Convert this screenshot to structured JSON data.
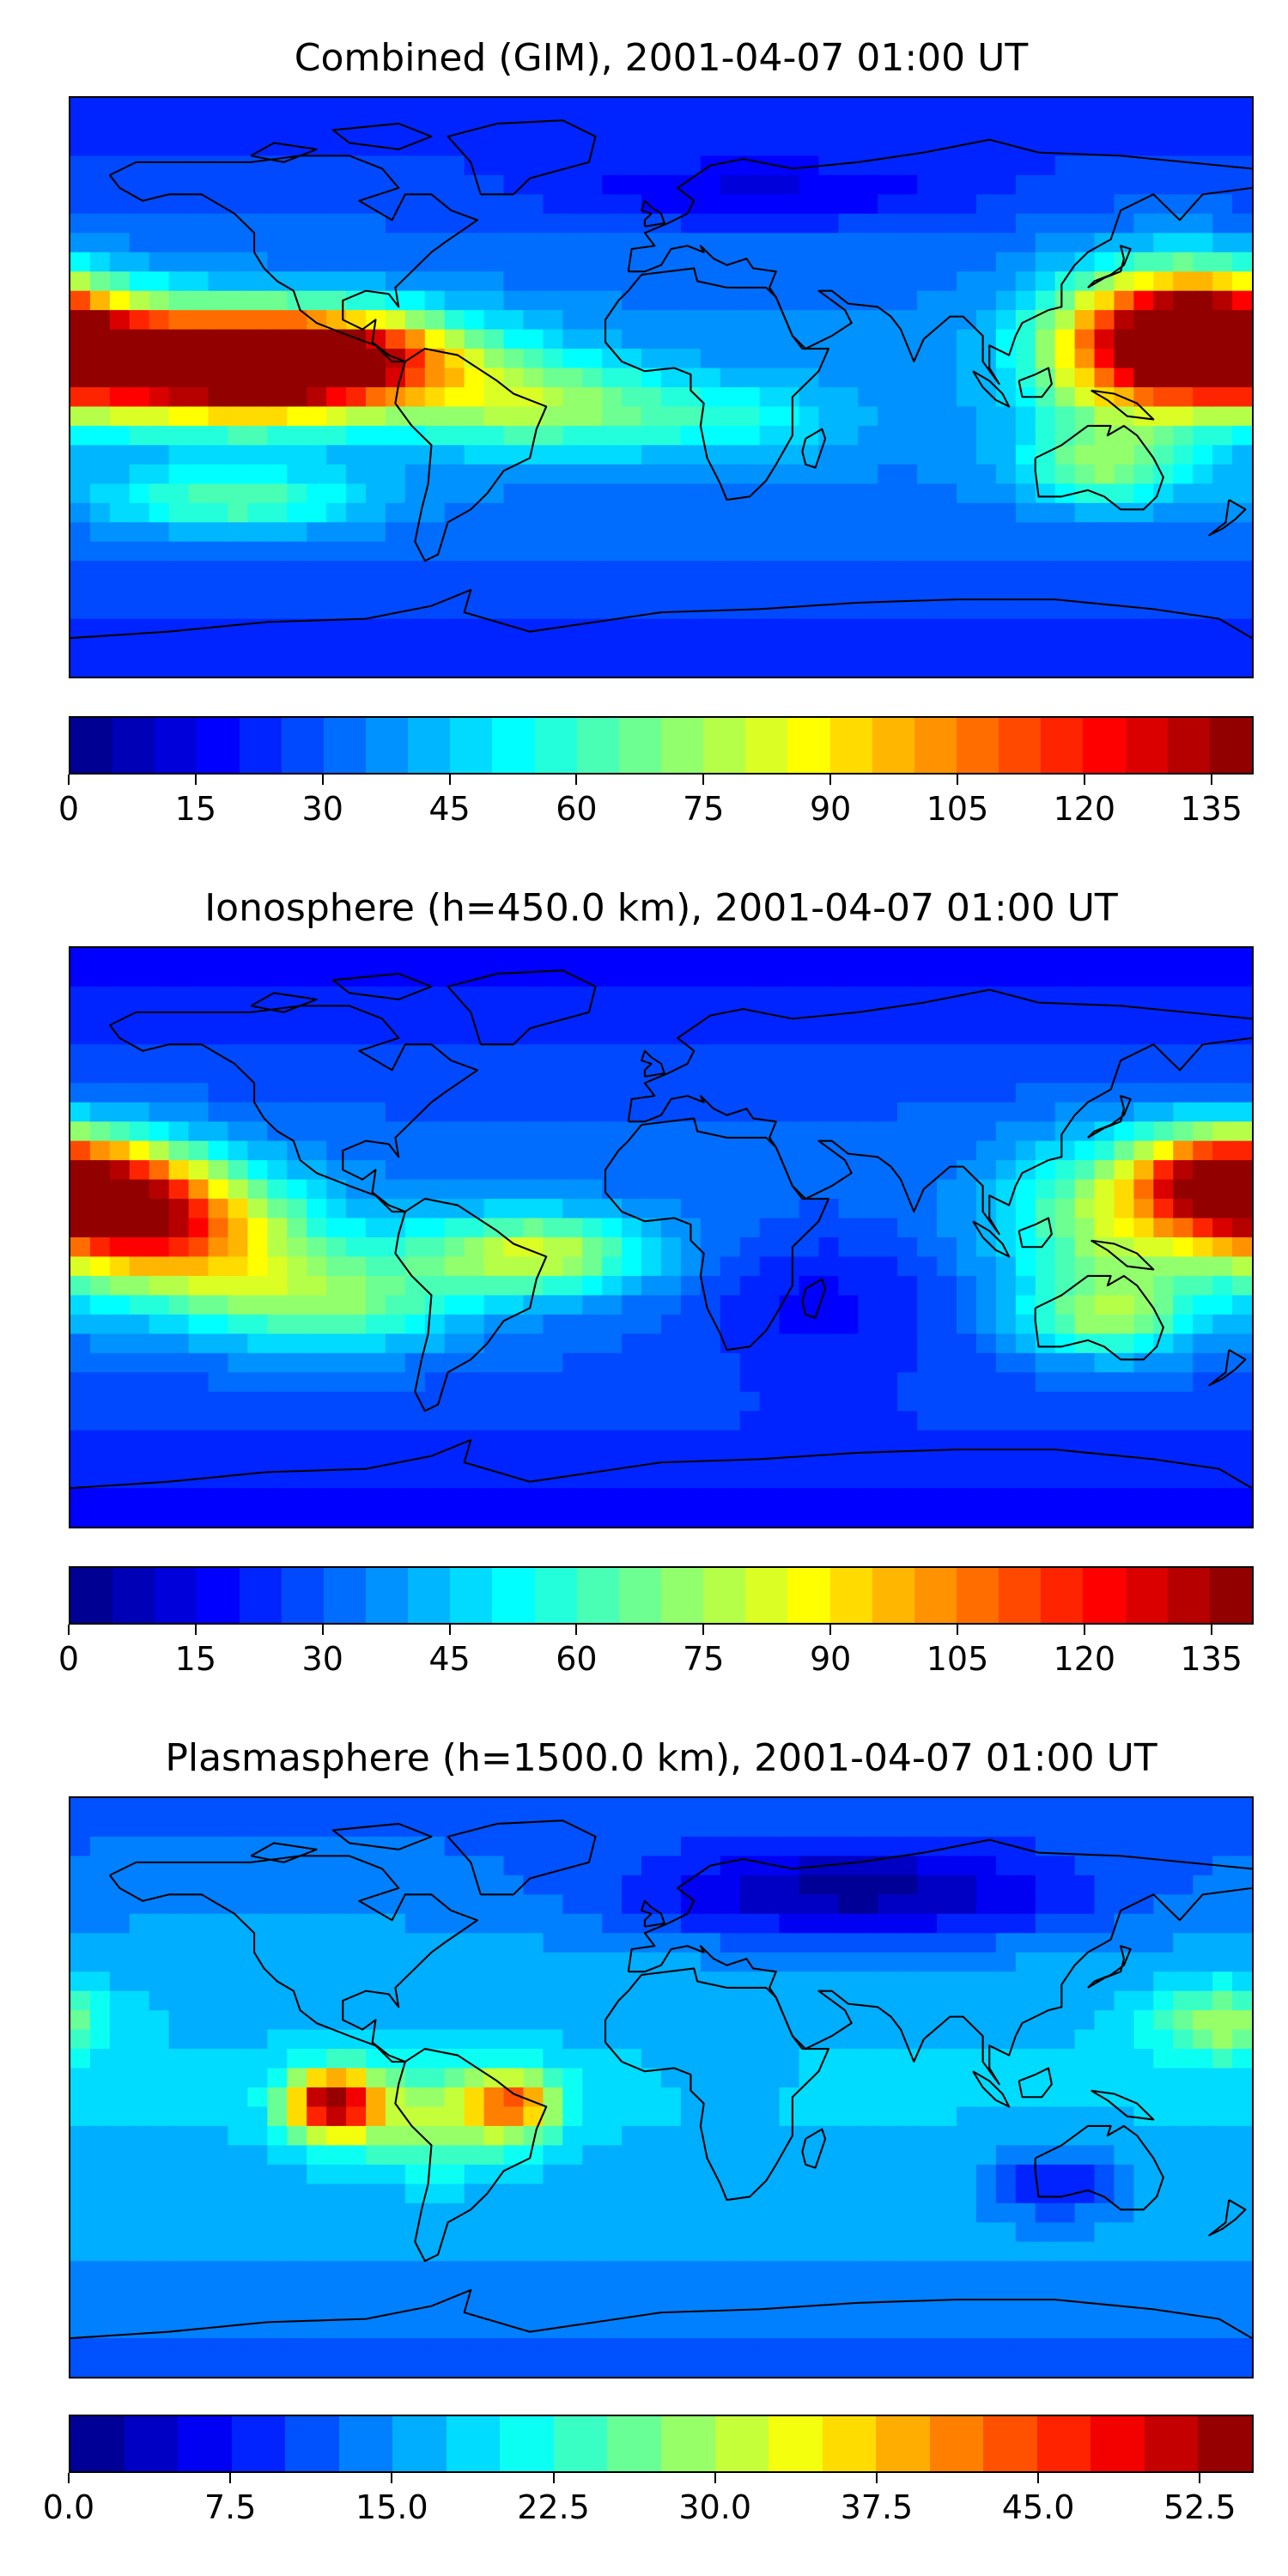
{
  "chart_data": [
    {
      "type": "heatmap",
      "title": "Combined (GIM), 2001-04-07 01:00 UT",
      "colorbar": {
        "min": 0,
        "max": 140,
        "levels": 28,
        "ticks": [
          "0",
          "15",
          "30",
          "45",
          "60",
          "75",
          "90",
          "105",
          "120",
          "135"
        ],
        "tick_values": [
          0,
          15,
          30,
          45,
          60,
          75,
          90,
          105,
          120,
          135
        ]
      },
      "background_level": 0.22,
      "blobs": [
        {
          "lon": -165,
          "lat": 8,
          "level": 0.85,
          "rlon": 45,
          "rlat": 16
        },
        {
          "lon": -120,
          "lat": 5,
          "level": 0.8,
          "rlon": 40,
          "rlat": 16
        },
        {
          "lon": -95,
          "lat": 10,
          "level": 0.7,
          "rlon": 40,
          "rlat": 14
        },
        {
          "lon": 165,
          "lat": 18,
          "level": 0.9,
          "rlon": 30,
          "rlat": 18
        },
        {
          "lon": 140,
          "lat": 10,
          "level": 0.55,
          "rlon": 30,
          "rlat": 25
        },
        {
          "lon": -40,
          "lat": -5,
          "level": 0.5,
          "rlon": 40,
          "rlat": 14
        },
        {
          "lon": 20,
          "lat": -10,
          "level": 0.35,
          "rlon": 35,
          "rlat": 12
        },
        {
          "lon": 135,
          "lat": -25,
          "level": 0.45,
          "rlon": 25,
          "rlat": 12
        },
        {
          "lon": -130,
          "lat": -35,
          "level": 0.45,
          "rlon": 40,
          "rlat": 10
        },
        {
          "lon": 30,
          "lat": 60,
          "level": 0.12,
          "rlon": 60,
          "rlat": 10
        }
      ]
    },
    {
      "type": "heatmap",
      "title": "Ionosphere  (h=450.0 km), 2001-04-07 01:00 UT",
      "colorbar": {
        "min": 0,
        "max": 140,
        "levels": 28,
        "ticks": [
          "0",
          "15",
          "30",
          "45",
          "60",
          "75",
          "90",
          "105",
          "120",
          "135"
        ],
        "tick_values": [
          0,
          15,
          30,
          45,
          60,
          75,
          90,
          105,
          120,
          135
        ]
      },
      "background_level": 0.2,
      "blobs": [
        {
          "lon": -165,
          "lat": 12,
          "level": 0.68,
          "rlon": 30,
          "rlat": 18
        },
        {
          "lon": -145,
          "lat": 0,
          "level": 0.62,
          "rlon": 40,
          "rlat": 20
        },
        {
          "lon": 170,
          "lat": 18,
          "level": 0.78,
          "rlon": 25,
          "rlat": 15
        },
        {
          "lon": 140,
          "lat": 5,
          "level": 0.5,
          "rlon": 35,
          "rlat": 25
        },
        {
          "lon": -40,
          "lat": -5,
          "level": 0.55,
          "rlon": 35,
          "rlat": 12
        },
        {
          "lon": -100,
          "lat": -20,
          "level": 0.45,
          "rlon": 40,
          "rlat": 15
        },
        {
          "lon": 50,
          "lat": -20,
          "level": 0.1,
          "rlon": 40,
          "rlat": 25
        },
        {
          "lon": 135,
          "lat": -25,
          "level": 0.45,
          "rlon": 25,
          "rlat": 12
        }
      ]
    },
    {
      "type": "heatmap",
      "title": "Plasmasphere (h=1500.0 km), 2001-04-07 01:00 UT",
      "colorbar": {
        "min": 0,
        "max": 55,
        "levels": 22,
        "ticks": [
          "0.0",
          "7.5",
          "15.0",
          "22.5",
          "30.0",
          "37.5",
          "45.0",
          "52.5"
        ],
        "tick_values": [
          0,
          7.5,
          15,
          22.5,
          30,
          37.5,
          45,
          52.5
        ]
      },
      "background_level": 0.28,
      "blobs": [
        {
          "lon": -100,
          "lat": -5,
          "level": 0.95,
          "rlon": 14,
          "rlat": 10
        },
        {
          "lon": -45,
          "lat": -5,
          "level": 0.7,
          "rlon": 14,
          "rlat": 10
        },
        {
          "lon": -70,
          "lat": -10,
          "level": 0.5,
          "rlon": 25,
          "rlat": 15
        },
        {
          "lon": 170,
          "lat": 20,
          "level": 0.5,
          "rlon": 20,
          "rlat": 12
        },
        {
          "lon": 20,
          "lat": 5,
          "level": 0.25,
          "rlon": 12,
          "rlat": 8
        },
        {
          "lon": 60,
          "lat": 60,
          "level": 0.05,
          "rlon": 70,
          "rlat": 15
        },
        {
          "lon": 120,
          "lat": -30,
          "level": 0.1,
          "rlon": 20,
          "rlat": 10
        }
      ]
    }
  ]
}
